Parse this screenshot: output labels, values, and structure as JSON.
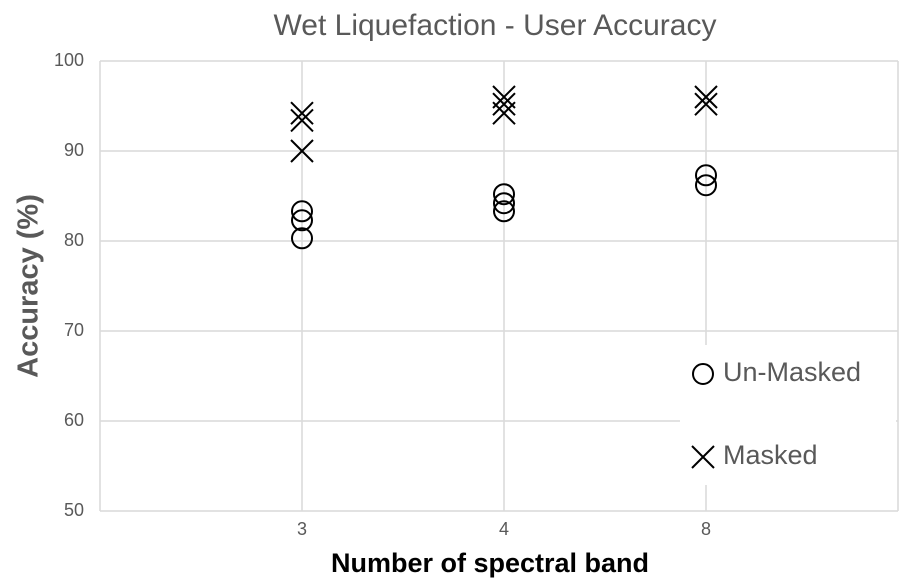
{
  "chart_data": {
    "type": "scatter",
    "title": "Wet Liquefaction - User Accuracy",
    "x_label": "Number of spectral band",
    "y_label": "Accuracy (%)",
    "categories": [
      "3",
      "4",
      "8"
    ],
    "series": [
      {
        "name": "Un-Masked",
        "marker": "circle",
        "color": "#000000",
        "x": [
          "3",
          "3",
          "3",
          "4",
          "4",
          "4",
          "8",
          "8"
        ],
        "values": [
          83.3,
          82.3,
          80.3,
          85.2,
          84.2,
          83.3,
          87.3,
          86.2
        ]
      },
      {
        "name": "Masked",
        "marker": "cross",
        "color": "#000000",
        "x": [
          "3",
          "3",
          "3",
          "4",
          "4",
          "4",
          "8",
          "8"
        ],
        "values": [
          94.2,
          93.4,
          90,
          96,
          95.2,
          94.2,
          96,
          95.2
        ]
      }
    ],
    "ylim": [
      50,
      100
    ],
    "yticks": [
      50,
      60,
      70,
      80,
      90,
      100
    ],
    "grid": true,
    "legend": "lower right"
  }
}
